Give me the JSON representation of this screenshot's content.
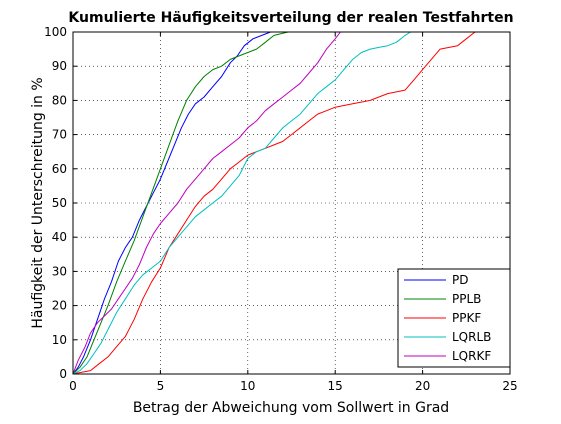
{
  "chart_data": {
    "type": "line",
    "title": "Kumulierte Häufigkeitsverteilung der realen Testfahrten",
    "xlabel": "Betrag der Abweichung vom Sollwert in Grad",
    "ylabel": "Häufigkeit der Unterschreitung in %",
    "xlim": [
      0,
      25
    ],
    "ylim": [
      0,
      100
    ],
    "xticks": [
      0,
      5,
      10,
      15,
      20,
      25
    ],
    "yticks": [
      0,
      10,
      20,
      30,
      40,
      50,
      60,
      70,
      80,
      90,
      100
    ],
    "grid": true,
    "legend_position": "bottom-right",
    "series": [
      {
        "name": "PD",
        "color": "#0000ff",
        "points": [
          [
            0,
            0
          ],
          [
            0.3,
            2
          ],
          [
            0.6,
            5
          ],
          [
            1,
            10
          ],
          [
            1.4,
            16
          ],
          [
            1.8,
            22
          ],
          [
            2.2,
            27
          ],
          [
            2.6,
            33
          ],
          [
            3,
            37
          ],
          [
            3.4,
            40
          ],
          [
            3.8,
            45
          ],
          [
            4.2,
            49
          ],
          [
            4.6,
            53
          ],
          [
            5,
            57
          ],
          [
            5.4,
            62
          ],
          [
            5.8,
            67
          ],
          [
            6.2,
            72
          ],
          [
            6.6,
            76
          ],
          [
            7,
            79
          ],
          [
            7.5,
            81
          ],
          [
            8,
            84
          ],
          [
            8.5,
            87
          ],
          [
            9,
            91
          ],
          [
            9.4,
            93
          ],
          [
            9.8,
            96
          ],
          [
            10.3,
            98
          ],
          [
            10.8,
            99
          ],
          [
            11.3,
            100
          ],
          [
            11.8,
            100
          ]
        ]
      },
      {
        "name": "PPLB",
        "color": "#008000",
        "points": [
          [
            0,
            0
          ],
          [
            0.4,
            2
          ],
          [
            0.8,
            5
          ],
          [
            1.2,
            10
          ],
          [
            1.6,
            15
          ],
          [
            2,
            20
          ],
          [
            2.5,
            27
          ],
          [
            3,
            33
          ],
          [
            3.5,
            39
          ],
          [
            4,
            46
          ],
          [
            4.5,
            53
          ],
          [
            5,
            60
          ],
          [
            5.5,
            67
          ],
          [
            6,
            74
          ],
          [
            6.5,
            80
          ],
          [
            7,
            84
          ],
          [
            7.5,
            87
          ],
          [
            8,
            89
          ],
          [
            8.5,
            90
          ],
          [
            9,
            92
          ],
          [
            9.5,
            93
          ],
          [
            10,
            94
          ],
          [
            10.5,
            95
          ],
          [
            11,
            97
          ],
          [
            11.5,
            99
          ],
          [
            12.3,
            100
          ],
          [
            12.8,
            100
          ]
        ]
      },
      {
        "name": "PPKF",
        "color": "#ff0000",
        "points": [
          [
            0,
            0
          ],
          [
            0.5,
            0.5
          ],
          [
            1,
            1
          ],
          [
            1.5,
            3
          ],
          [
            2,
            5
          ],
          [
            2.5,
            8
          ],
          [
            3,
            11
          ],
          [
            3.5,
            16
          ],
          [
            4,
            22
          ],
          [
            4.5,
            27
          ],
          [
            5,
            31
          ],
          [
            5.5,
            37
          ],
          [
            6,
            41
          ],
          [
            6.5,
            45
          ],
          [
            7,
            49
          ],
          [
            7.5,
            52
          ],
          [
            8,
            54
          ],
          [
            8.5,
            57
          ],
          [
            9,
            60
          ],
          [
            9.5,
            62
          ],
          [
            10,
            64
          ],
          [
            10.5,
            65
          ],
          [
            11,
            66
          ],
          [
            11.5,
            67
          ],
          [
            12,
            68
          ],
          [
            12.5,
            70
          ],
          [
            13,
            72
          ],
          [
            13.5,
            74
          ],
          [
            14,
            76
          ],
          [
            14.5,
            77
          ],
          [
            15,
            78
          ],
          [
            16,
            79
          ],
          [
            17,
            80
          ],
          [
            18,
            82
          ],
          [
            19,
            83
          ],
          [
            19.5,
            86
          ],
          [
            20,
            89
          ],
          [
            20.5,
            92
          ],
          [
            21,
            95
          ],
          [
            22,
            96
          ],
          [
            22.5,
            98
          ],
          [
            23,
            100
          ]
        ]
      },
      {
        "name": "LQRLB",
        "color": "#00bfbf",
        "points": [
          [
            0,
            0
          ],
          [
            0.4,
            1
          ],
          [
            0.8,
            3
          ],
          [
            1.2,
            6
          ],
          [
            1.6,
            9
          ],
          [
            2,
            13
          ],
          [
            2.5,
            18
          ],
          [
            3,
            22
          ],
          [
            3.5,
            26
          ],
          [
            4,
            29
          ],
          [
            4.5,
            31
          ],
          [
            5,
            33
          ],
          [
            5.5,
            37
          ],
          [
            6,
            40
          ],
          [
            6.5,
            43
          ],
          [
            7,
            46
          ],
          [
            7.5,
            48
          ],
          [
            8,
            50
          ],
          [
            8.5,
            52
          ],
          [
            9,
            55
          ],
          [
            9.5,
            58
          ],
          [
            10,
            63
          ],
          [
            10.5,
            65
          ],
          [
            11,
            66
          ],
          [
            11.5,
            69
          ],
          [
            12,
            72
          ],
          [
            12.5,
            74
          ],
          [
            13,
            76
          ],
          [
            13.5,
            79
          ],
          [
            14,
            82
          ],
          [
            14.5,
            84
          ],
          [
            15,
            86
          ],
          [
            15.5,
            89
          ],
          [
            16,
            92
          ],
          [
            16.5,
            94
          ],
          [
            17,
            95
          ],
          [
            17.5,
            95.5
          ],
          [
            18,
            96
          ],
          [
            18.5,
            97
          ],
          [
            19,
            99
          ],
          [
            19.3,
            100
          ]
        ]
      },
      {
        "name": "LQRKF",
        "color": "#bf00bf",
        "points": [
          [
            0,
            0
          ],
          [
            0.3,
            4
          ],
          [
            0.7,
            8
          ],
          [
            1,
            12
          ],
          [
            1.4,
            15
          ],
          [
            1.8,
            17
          ],
          [
            2.2,
            19
          ],
          [
            2.6,
            22
          ],
          [
            3,
            25
          ],
          [
            3.4,
            28
          ],
          [
            3.8,
            32
          ],
          [
            4.2,
            37
          ],
          [
            4.6,
            41
          ],
          [
            5,
            44
          ],
          [
            5.5,
            47
          ],
          [
            6,
            50
          ],
          [
            6.5,
            54
          ],
          [
            7,
            57
          ],
          [
            7.5,
            60
          ],
          [
            8,
            63
          ],
          [
            8.5,
            65
          ],
          [
            9,
            67
          ],
          [
            9.5,
            69
          ],
          [
            10,
            72
          ],
          [
            10.5,
            74
          ],
          [
            11,
            77
          ],
          [
            11.5,
            79
          ],
          [
            12,
            81
          ],
          [
            12.5,
            83
          ],
          [
            13,
            85
          ],
          [
            13.5,
            88
          ],
          [
            14,
            91
          ],
          [
            14.5,
            95
          ],
          [
            15,
            98
          ],
          [
            15.3,
            100
          ]
        ]
      }
    ]
  }
}
